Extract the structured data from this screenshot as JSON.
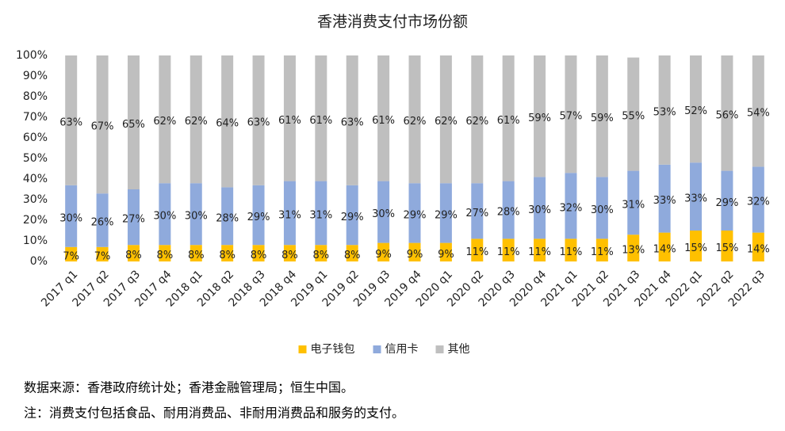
{
  "chart_data": {
    "type": "stacked_bar",
    "title": "香港消费支付市场份额",
    "categories": [
      "2017 q1",
      "2017 q2",
      "2017 q3",
      "2017 q4",
      "2018 q1",
      "2018 q2",
      "2018 q3",
      "2018 q4",
      "2019 q1",
      "2019 q2",
      "2019 q3",
      "2019 q4",
      "2020 q1",
      "2020 q2",
      "2020 q3",
      "2020 q4",
      "2021 q1",
      "2021 q2",
      "2021 q3",
      "2021 q4",
      "2022 q1",
      "2022 q2",
      "2022 q3"
    ],
    "series": [
      {
        "name": "电子钱包",
        "color": "#FFC000",
        "values": [
          7,
          7,
          8,
          8,
          8,
          8,
          8,
          8,
          8,
          8,
          9,
          9,
          9,
          11,
          11,
          11,
          11,
          11,
          13,
          14,
          15,
          15,
          14
        ],
        "value_labels": [
          "7%",
          "7%",
          "8%",
          "8%",
          "8%",
          "8%",
          "8%",
          "8%",
          "8%",
          "8%",
          "9%",
          "9%",
          "9%",
          "11%",
          "11%",
          "11%",
          "11%",
          "11%",
          "13%",
          "14%",
          "15%",
          "15%",
          "14%"
        ]
      },
      {
        "name": "信用卡",
        "color": "#8FAADC",
        "values": [
          30,
          26,
          27,
          30,
          30,
          28,
          29,
          31,
          31,
          29,
          30,
          29,
          29,
          27,
          28,
          30,
          32,
          30,
          31,
          33,
          33,
          29,
          32
        ],
        "value_labels": [
          "30%",
          "26%",
          "27%",
          "30%",
          "30%",
          "28%",
          "29%",
          "31%",
          "31%",
          "29%",
          "30%",
          "29%",
          "29%",
          "27%",
          "28%",
          "30%",
          "32%",
          "30%",
          "31%",
          "33%",
          "33%",
          "29%",
          "32%"
        ]
      },
      {
        "name": "其他",
        "color": "#BFBFBF",
        "values": [
          63,
          67,
          65,
          62,
          62,
          64,
          63,
          61,
          61,
          63,
          61,
          62,
          62,
          62,
          61,
          59,
          57,
          59,
          55,
          53,
          52,
          56,
          54
        ],
        "value_labels": [
          "63%",
          "67%",
          "65%",
          "62%",
          "62%",
          "64%",
          "63%",
          "61%",
          "61%",
          "63%",
          "61%",
          "62%",
          "62%",
          "62%",
          "61%",
          "59%",
          "57%",
          "59%",
          "55%",
          "53%",
          "52%",
          "56%",
          "54%"
        ]
      }
    ],
    "ylim": [
      0,
      100
    ],
    "yticks": [
      {
        "value": 0,
        "label": "0%"
      },
      {
        "value": 10,
        "label": "10%"
      },
      {
        "value": 20,
        "label": "20%"
      },
      {
        "value": 30,
        "label": "30%"
      },
      {
        "value": 40,
        "label": "40%"
      },
      {
        "value": 50,
        "label": "50%"
      },
      {
        "value": 60,
        "label": "60%"
      },
      {
        "value": 70,
        "label": "70%"
      },
      {
        "value": 80,
        "label": "80%"
      },
      {
        "value": 90,
        "label": "90%"
      },
      {
        "value": 100,
        "label": "100%"
      }
    ],
    "grid": false,
    "legend": "bottom",
    "notes": [
      "数据来源：香港政府统计处；香港金融管理局；恒生中国。",
      "注：消费支付包括食品、耐用消费品、非耐用消费品和服务的支付。"
    ]
  }
}
